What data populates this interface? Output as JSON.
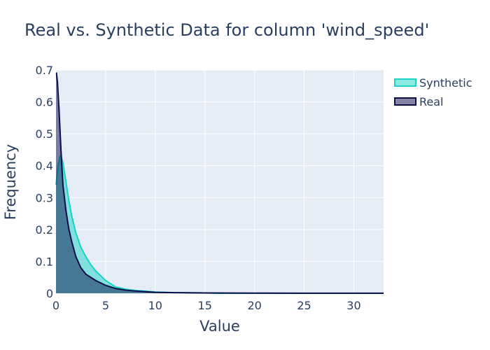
{
  "chart_data": {
    "type": "area",
    "title": "Real vs. Synthetic Data for column 'wind_speed'",
    "xlabel": "Value",
    "ylabel": "Frequency",
    "xlim": [
      0,
      33
    ],
    "ylim": [
      0,
      0.7
    ],
    "x_ticks": [
      0,
      5,
      10,
      15,
      20,
      25,
      30
    ],
    "y_ticks": [
      0,
      0.1,
      0.2,
      0.3,
      0.4,
      0.5,
      0.6,
      0.7
    ],
    "grid": true,
    "legend_position": "top-right",
    "series": [
      {
        "name": "Synthetic",
        "color": "#19d3c5",
        "x": [
          0,
          0.2,
          0.4,
          0.5,
          0.7,
          1.0,
          1.3,
          1.6,
          2.0,
          2.5,
          3.0,
          3.5,
          4.0,
          5.0,
          6.0,
          7.0,
          8.0,
          10.0,
          12.0,
          15.0,
          16.2,
          33
        ],
        "y": [
          0.34,
          0.4,
          0.43,
          0.43,
          0.41,
          0.35,
          0.29,
          0.24,
          0.19,
          0.145,
          0.115,
          0.09,
          0.07,
          0.04,
          0.02,
          0.013,
          0.009,
          0.004,
          0.002,
          0.001,
          0.0,
          0.0
        ]
      },
      {
        "name": "Real",
        "color": "#0d0d4a",
        "x": [
          0,
          0.05,
          0.15,
          0.3,
          0.5,
          0.7,
          1.0,
          1.3,
          1.6,
          2.0,
          2.5,
          3.0,
          4.0,
          5.0,
          6.0,
          7.0,
          8.0,
          10.0,
          12.0,
          15.0,
          20.0,
          25.0,
          33
        ],
        "y": [
          0.69,
          0.69,
          0.66,
          0.58,
          0.45,
          0.34,
          0.26,
          0.2,
          0.16,
          0.115,
          0.08,
          0.06,
          0.04,
          0.025,
          0.015,
          0.01,
          0.007,
          0.003,
          0.002,
          0.001,
          0.0005,
          0.0003,
          0.0002
        ]
      }
    ]
  }
}
